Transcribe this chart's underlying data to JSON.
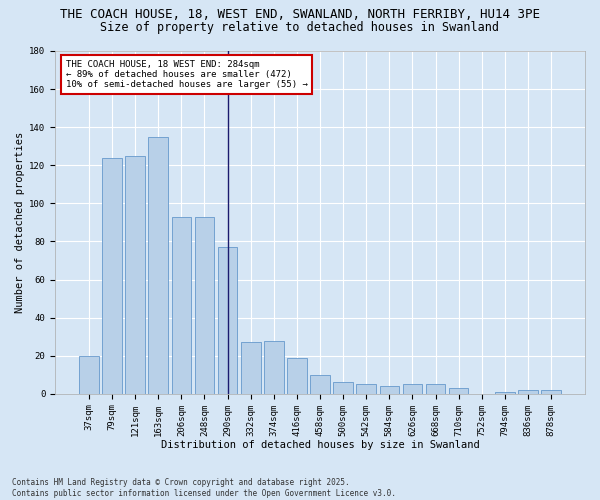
{
  "title_line1": "THE COACH HOUSE, 18, WEST END, SWANLAND, NORTH FERRIBY, HU14 3PE",
  "title_line2": "Size of property relative to detached houses in Swanland",
  "xlabel": "Distribution of detached houses by size in Swanland",
  "ylabel": "Number of detached properties",
  "categories": [
    "37sqm",
    "79sqm",
    "121sqm",
    "163sqm",
    "206sqm",
    "248sqm",
    "290sqm",
    "332sqm",
    "374sqm",
    "416sqm",
    "458sqm",
    "500sqm",
    "542sqm",
    "584sqm",
    "626sqm",
    "668sqm",
    "710sqm",
    "752sqm",
    "794sqm",
    "836sqm",
    "878sqm"
  ],
  "values": [
    20,
    124,
    125,
    135,
    93,
    93,
    77,
    27,
    28,
    19,
    10,
    6,
    5,
    4,
    5,
    5,
    3,
    0,
    1,
    2,
    2
  ],
  "bar_color": "#b8d0e8",
  "bar_edge_color": "#6699cc",
  "highlight_bar_index": 6,
  "highlight_line_color": "#1a1a6e",
  "annotation_text": "THE COACH HOUSE, 18 WEST END: 284sqm\n← 89% of detached houses are smaller (472)\n10% of semi-detached houses are larger (55) →",
  "annotation_box_color": "#ffffff",
  "annotation_border_color": "#cc0000",
  "ylim": [
    0,
    180
  ],
  "yticks": [
    0,
    20,
    40,
    60,
    80,
    100,
    120,
    140,
    160,
    180
  ],
  "background_color": "#d6e6f5",
  "grid_color": "#ffffff",
  "footer_line1": "Contains HM Land Registry data © Crown copyright and database right 2025.",
  "footer_line2": "Contains public sector information licensed under the Open Government Licence v3.0.",
  "title_fontsize": 9,
  "subtitle_fontsize": 8.5,
  "axis_label_fontsize": 7.5,
  "tick_fontsize": 6.5,
  "annotation_fontsize": 6.5,
  "footer_fontsize": 5.5
}
